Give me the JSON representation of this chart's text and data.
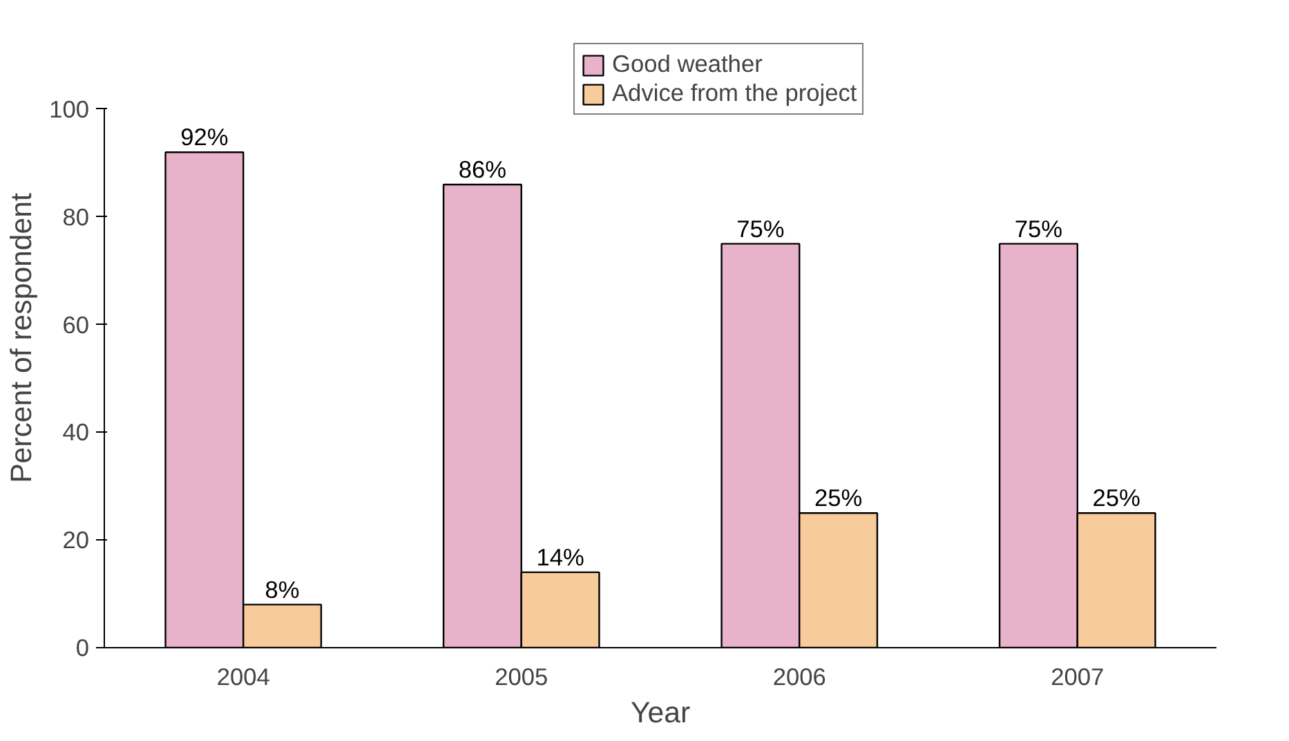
{
  "chart_data": {
    "type": "bar",
    "xlabel": "Year",
    "ylabel": "Percent of respondent",
    "categories": [
      "2004",
      "2005",
      "2006",
      "2007"
    ],
    "series": [
      {
        "name": "Good weather",
        "color": "#e9b2cb",
        "values": [
          92,
          86,
          75,
          75
        ],
        "value_labels": [
          "92%",
          "86%",
          "75%",
          "75%"
        ]
      },
      {
        "name": "Advice from the project",
        "color": "#f8cb9b",
        "values": [
          8,
          14,
          25,
          25
        ],
        "value_labels": [
          "8%",
          "14%",
          "25%",
          "25%"
        ]
      }
    ],
    "ylim": [
      0,
      100
    ],
    "yticks": [
      0,
      20,
      40,
      60,
      80,
      100
    ],
    "legend": "top",
    "grid": false
  }
}
